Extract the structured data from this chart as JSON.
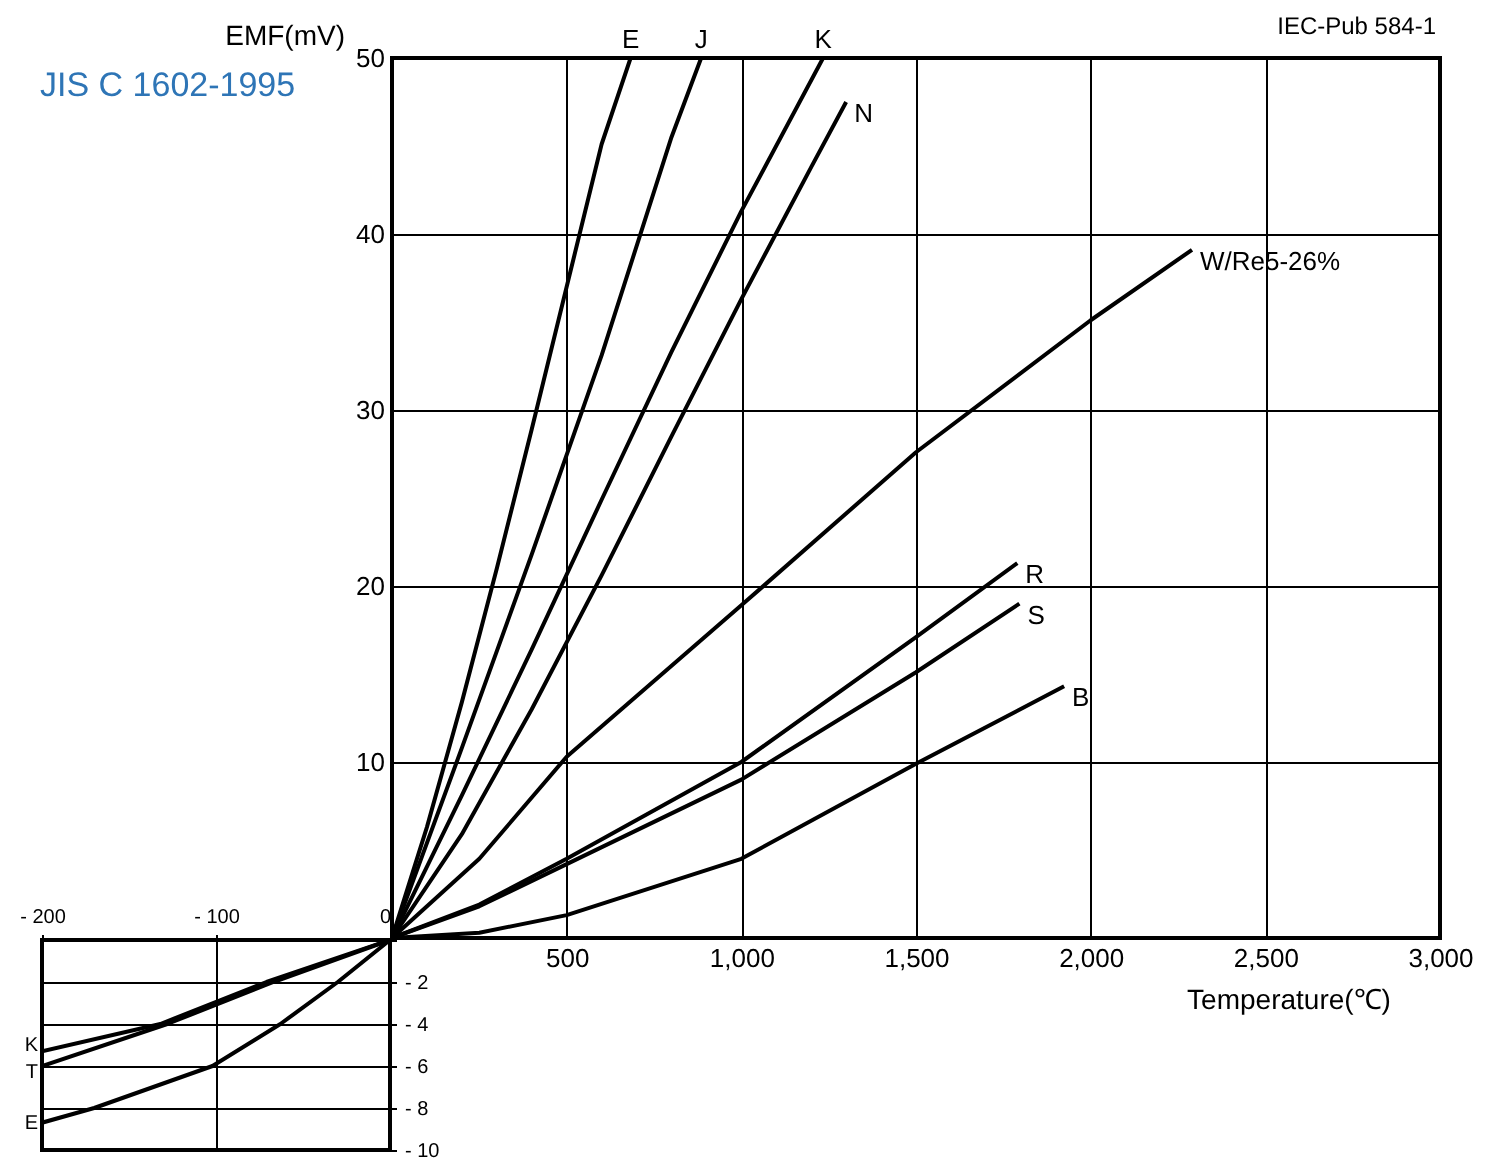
{
  "chart_data": [
    {
      "type": "line",
      "subtitle": "JIS C 1602-1995",
      "xlabel": "Temperature(℃)",
      "ylabel": "EMF(mV)",
      "annotations": [
        "IEC-Pub 584-1"
      ],
      "xlim": [
        0,
        3000
      ],
      "ylim": [
        0,
        50
      ],
      "xticks": [
        500,
        {
          "value": 1000,
          "label": "1,000"
        },
        {
          "value": 1500,
          "label": "1,500"
        },
        {
          "value": 2000,
          "label": "2,000"
        },
        {
          "value": 2500,
          "label": "2,500"
        },
        {
          "value": 3000,
          "label": "3,000"
        }
      ],
      "yticks": [
        10,
        20,
        30,
        40,
        50
      ],
      "grid": true,
      "series": [
        {
          "name": "E",
          "color": "#000000",
          "x": [
            0,
            100,
            200,
            300,
            400,
            500,
            600,
            683
          ],
          "values": [
            0,
            6.3,
            13.4,
            21.0,
            28.9,
            37.0,
            45.1,
            50
          ]
        },
        {
          "name": "J",
          "color": "#000000",
          "x": [
            0,
            200,
            400,
            600,
            800,
            885
          ],
          "values": [
            0,
            10.8,
            21.8,
            33.1,
            45.5,
            50
          ]
        },
        {
          "name": "K",
          "color": "#000000",
          "x": [
            0,
            200,
            400,
            600,
            800,
            1000,
            1234
          ],
          "values": [
            0,
            8.1,
            16.4,
            24.9,
            33.3,
            41.3,
            50
          ]
        },
        {
          "name": "N",
          "color": "#000000",
          "x": [
            0,
            200,
            400,
            600,
            800,
            1000,
            1200,
            1300
          ],
          "values": [
            0,
            5.9,
            13.0,
            20.6,
            28.5,
            36.3,
            43.8,
            47.5
          ]
        },
        {
          "name": "W/Re5-26%",
          "color": "#000000",
          "x": [
            0,
            250,
            500,
            1000,
            1500,
            2000,
            2290
          ],
          "values": [
            0,
            4.5,
            10.3,
            18.9,
            27.6,
            35.1,
            39.1
          ]
        },
        {
          "name": "R",
          "color": "#000000",
          "x": [
            0,
            250,
            500,
            1000,
            1500,
            1790
          ],
          "values": [
            0,
            1.9,
            4.5,
            10.0,
            17.1,
            21.3
          ]
        },
        {
          "name": "S",
          "color": "#000000",
          "x": [
            0,
            250,
            500,
            1000,
            1500,
            1796
          ],
          "values": [
            0,
            1.8,
            4.2,
            9.0,
            15.1,
            19.0
          ]
        },
        {
          "name": "B",
          "color": "#000000",
          "x": [
            0,
            250,
            500,
            1000,
            1500,
            1924
          ],
          "values": [
            0,
            0.3,
            1.3,
            4.5,
            9.9,
            14.3
          ]
        }
      ]
    },
    {
      "type": "line",
      "xlim": [
        -200,
        0
      ],
      "ylim": [
        -10,
        0
      ],
      "xticks": [
        {
          "value": -200,
          "label": "- 200"
        },
        {
          "value": -100,
          "label": "- 100"
        },
        0
      ],
      "yticks": [
        {
          "value": -10,
          "label": "- 10"
        },
        {
          "value": -8,
          "label": "- 8"
        },
        {
          "value": -6,
          "label": "- 6"
        },
        {
          "value": -4,
          "label": "- 4"
        },
        {
          "value": -2,
          "label": "- 2"
        },
        {
          "value": 0,
          "label": null
        }
      ],
      "grid": true,
      "series": [
        {
          "name": "K",
          "color": "#000000",
          "x": [
            0,
            -71,
            -132,
            -200
          ],
          "values": [
            0,
            -2,
            -4,
            -5.3
          ]
        },
        {
          "name": "T",
          "color": "#000000",
          "x": [
            0,
            -67,
            -128,
            -200
          ],
          "values": [
            0,
            -2,
            -4,
            -6.0
          ]
        },
        {
          "name": "E",
          "color": "#000000",
          "x": [
            0,
            -30,
            -63,
            -102,
            -170,
            -200
          ],
          "values": [
            0,
            -2,
            -4,
            -6,
            -8,
            -8.7
          ]
        }
      ]
    }
  ]
}
